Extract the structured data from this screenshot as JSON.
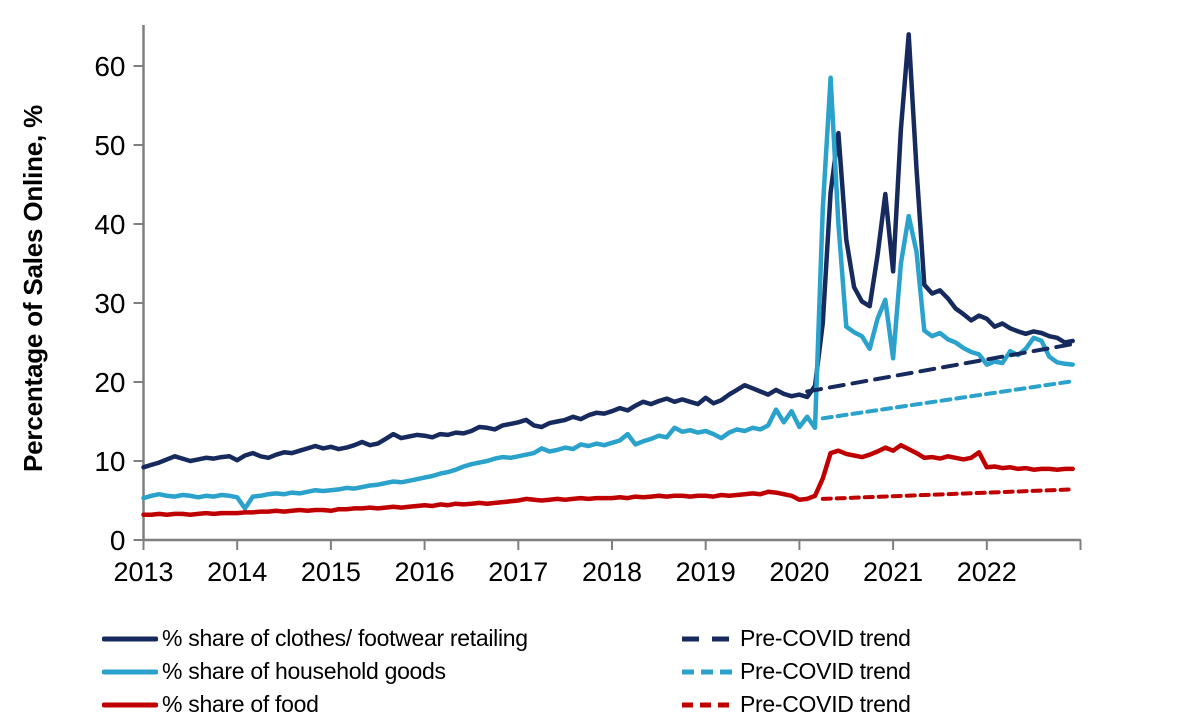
{
  "page": {
    "background": "#ffffff"
  },
  "chart_data": {
    "type": "line",
    "title": "",
    "xlabel": "",
    "ylabel": "Percentage of Sales Online, %",
    "grid": false,
    "legend_position": "bottom",
    "axis_color": "#7f7f7f",
    "text_color": "#000000",
    "x_tick_labels": [
      "2013",
      "2014",
      "2015",
      "2016",
      "2017",
      "2018",
      "2019",
      "2020",
      "2021",
      "2022"
    ],
    "y_ticks": [
      0,
      10,
      20,
      30,
      40,
      50,
      60
    ],
    "ylim": [
      0,
      65
    ],
    "xlim": [
      2013,
      2023
    ],
    "monthly_start_year": 2013,
    "series": [
      {
        "name": "% share of clothes/ footwear retailing",
        "color": "#172A5E",
        "style": "solid",
        "cadence": "monthly",
        "values": [
          9.2,
          9.5,
          9.8,
          10.2,
          10.6,
          10.3,
          10.0,
          10.2,
          10.4,
          10.3,
          10.5,
          10.6,
          10.1,
          10.7,
          11.0,
          10.6,
          10.4,
          10.8,
          11.1,
          11.0,
          11.3,
          11.6,
          11.9,
          11.6,
          11.8,
          11.5,
          11.7,
          12.0,
          12.4,
          12.0,
          12.2,
          12.8,
          13.4,
          12.9,
          13.1,
          13.3,
          13.2,
          13.0,
          13.4,
          13.3,
          13.6,
          13.5,
          13.8,
          14.3,
          14.2,
          14.0,
          14.5,
          14.7,
          14.9,
          15.2,
          14.5,
          14.3,
          14.8,
          15.0,
          15.2,
          15.6,
          15.3,
          15.8,
          16.1,
          16.0,
          16.3,
          16.7,
          16.4,
          17.0,
          17.5,
          17.2,
          17.6,
          17.9,
          17.5,
          17.8,
          17.5,
          17.2,
          18.0,
          17.3,
          17.7,
          18.4,
          19.0,
          19.6,
          19.2,
          18.8,
          18.4,
          19.0,
          18.5,
          18.2,
          18.4,
          18.1,
          19.5,
          27.5,
          44.0,
          51.5,
          38.0,
          32.0,
          30.2,
          29.6,
          36.0,
          43.8,
          34.0,
          52.0,
          64.0,
          47.0,
          32.3,
          31.2,
          31.6,
          30.6,
          29.3,
          28.6,
          27.8,
          28.4,
          28.0,
          27.0,
          27.4,
          26.8,
          26.4,
          26.1,
          26.4,
          26.2,
          25.8,
          25.6,
          25.0,
          25.2
        ]
      },
      {
        "name": "% share of household goods",
        "color": "#2AA2CC",
        "style": "solid",
        "cadence": "monthly",
        "values": [
          5.3,
          5.6,
          5.8,
          5.6,
          5.5,
          5.7,
          5.6,
          5.4,
          5.6,
          5.5,
          5.7,
          5.6,
          5.4,
          4.0,
          5.5,
          5.6,
          5.8,
          5.9,
          5.8,
          6.0,
          5.9,
          6.1,
          6.3,
          6.2,
          6.3,
          6.4,
          6.6,
          6.5,
          6.7,
          6.9,
          7.0,
          7.2,
          7.4,
          7.3,
          7.5,
          7.7,
          7.9,
          8.1,
          8.4,
          8.6,
          8.9,
          9.3,
          9.6,
          9.8,
          10.0,
          10.3,
          10.5,
          10.4,
          10.6,
          10.8,
          11.0,
          11.6,
          11.2,
          11.4,
          11.7,
          11.5,
          12.1,
          11.9,
          12.2,
          12.0,
          12.3,
          12.6,
          13.4,
          12.1,
          12.5,
          12.8,
          13.2,
          13.0,
          14.2,
          13.7,
          13.9,
          13.6,
          13.8,
          13.4,
          12.9,
          13.6,
          14.0,
          13.8,
          14.2,
          14.0,
          14.5,
          16.5,
          14.9,
          16.3,
          14.3,
          15.6,
          14.2,
          42.0,
          58.5,
          40.0,
          27.0,
          26.3,
          25.8,
          24.2,
          28.0,
          30.4,
          23.0,
          35.0,
          41.0,
          36.5,
          26.5,
          25.8,
          26.2,
          25.4,
          25.0,
          24.3,
          23.8,
          23.5,
          22.2,
          22.6,
          22.4,
          23.9,
          23.4,
          24.2,
          25.6,
          25.2,
          23.2,
          22.5,
          22.3,
          22.2
        ]
      },
      {
        "name": "% share of food",
        "color": "#C00000",
        "style": "solid",
        "cadence": "monthly",
        "values": [
          3.2,
          3.2,
          3.3,
          3.2,
          3.3,
          3.3,
          3.2,
          3.3,
          3.4,
          3.3,
          3.4,
          3.4,
          3.4,
          3.5,
          3.5,
          3.6,
          3.6,
          3.7,
          3.6,
          3.7,
          3.8,
          3.7,
          3.8,
          3.8,
          3.7,
          3.9,
          3.9,
          4.0,
          4.0,
          4.1,
          4.0,
          4.1,
          4.2,
          4.1,
          4.2,
          4.3,
          4.4,
          4.3,
          4.5,
          4.4,
          4.6,
          4.5,
          4.6,
          4.7,
          4.6,
          4.7,
          4.8,
          4.9,
          5.0,
          5.2,
          5.1,
          5.0,
          5.1,
          5.2,
          5.1,
          5.2,
          5.3,
          5.2,
          5.3,
          5.3,
          5.3,
          5.4,
          5.3,
          5.5,
          5.4,
          5.5,
          5.6,
          5.5,
          5.6,
          5.6,
          5.5,
          5.6,
          5.6,
          5.5,
          5.7,
          5.6,
          5.7,
          5.8,
          5.9,
          5.8,
          6.1,
          6.0,
          5.8,
          5.6,
          5.1,
          5.2,
          5.6,
          7.8,
          11.0,
          11.3,
          10.9,
          10.7,
          10.5,
          10.8,
          11.2,
          11.7,
          11.3,
          12.0,
          11.5,
          11.0,
          10.4,
          10.5,
          10.3,
          10.6,
          10.4,
          10.2,
          10.4,
          11.1,
          9.2,
          9.3,
          9.1,
          9.2,
          9.0,
          9.1,
          8.9,
          9.0,
          9.0,
          8.9,
          9.0,
          9.0
        ]
      },
      {
        "name": "Pre-COVID trend",
        "color": "#172A5E",
        "style": "dashed",
        "dash": "14 9",
        "x": [
          2020.083,
          2022.917
        ],
        "values": [
          18.8,
          24.8
        ]
      },
      {
        "name": "Pre-COVID trend",
        "color": "#2AA2CC",
        "style": "dashed",
        "dash": "9 6",
        "x": [
          2020.25,
          2022.917
        ],
        "values": [
          15.4,
          20.1
        ]
      },
      {
        "name": "Pre-COVID trend",
        "color": "#C00000",
        "style": "dashed",
        "dash": "8 6",
        "x": [
          2020.25,
          2022.917
        ],
        "values": [
          5.2,
          6.4
        ]
      }
    ]
  }
}
